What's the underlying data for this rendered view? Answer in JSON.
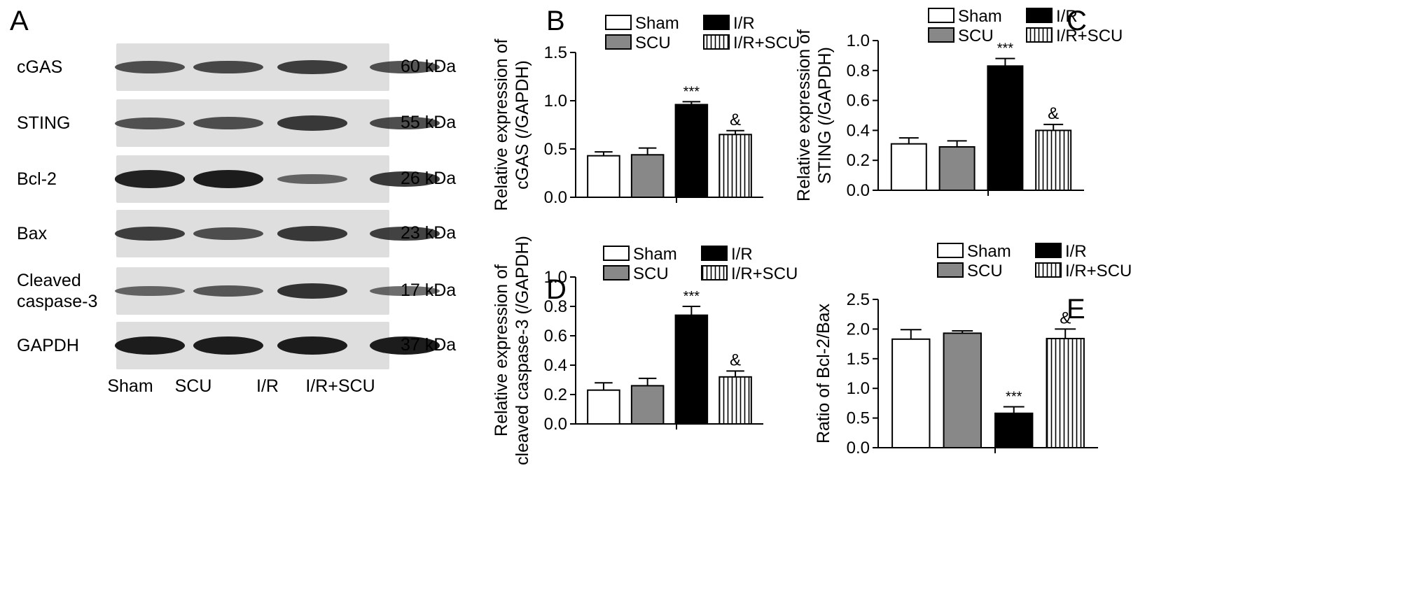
{
  "panel_letters": {
    "a": "A",
    "b": "B",
    "c": "C",
    "d": "D",
    "e": "E"
  },
  "western_blot": {
    "lanes": [
      "Sham",
      "SCU",
      "I/R",
      "I/R+SCU"
    ],
    "proteins": [
      {
        "name": "cGAS",
        "size": "60 kDa"
      },
      {
        "name": "STING",
        "size": "55 kDa"
      },
      {
        "name": "Bcl-2",
        "size": "26 kDa"
      },
      {
        "name": "Bax",
        "size": "23 kDa"
      },
      {
        "name": "Cleaved\ncaspase-3",
        "size": "17 kDa"
      },
      {
        "name": "GAPDH",
        "size": "37 kDa"
      }
    ],
    "band_intensity": [
      [
        0.55,
        0.6,
        0.7,
        0.55
      ],
      [
        0.5,
        0.55,
        0.75,
        0.6
      ],
      [
        0.95,
        1.0,
        0.35,
        0.75
      ],
      [
        0.7,
        0.55,
        0.75,
        0.7
      ],
      [
        0.35,
        0.45,
        0.8,
        0.35
      ],
      [
        1.0,
        1.0,
        1.0,
        1.0
      ]
    ]
  },
  "chart_data": [
    {
      "id": "B",
      "type": "bar",
      "categories": [
        "Sham",
        "SCU",
        "I/R",
        "I/R+SCU"
      ],
      "values": [
        0.43,
        0.44,
        0.96,
        0.65
      ],
      "errors": [
        0.04,
        0.07,
        0.03,
        0.04
      ],
      "annotations": [
        "",
        "",
        "***",
        "&"
      ],
      "ylabel": "Relative expression of\ncGAS (/GAPDH)",
      "ylim": [
        0,
        1.5
      ],
      "yticks": [
        "0.0",
        "0.5",
        "1.0",
        "1.5"
      ],
      "legend": [
        "Sham",
        "SCU",
        "I/R",
        "I/R+SCU"
      ],
      "legend_position": "top"
    },
    {
      "id": "C",
      "type": "bar",
      "categories": [
        "Sham",
        "SCU",
        "I/R",
        "I/R+SCU"
      ],
      "values": [
        0.31,
        0.29,
        0.83,
        0.4
      ],
      "errors": [
        0.04,
        0.04,
        0.05,
        0.04
      ],
      "annotations": [
        "",
        "",
        "***",
        "&"
      ],
      "ylabel": "Relative expression of\nSTING (/GAPDH)",
      "ylim": [
        0,
        1.0
      ],
      "yticks": [
        "0.0",
        "0.2",
        "0.4",
        "0.6",
        "0.8",
        "1.0"
      ],
      "legend": [
        "Sham",
        "SCU",
        "I/R",
        "I/R+SCU"
      ],
      "legend_position": "top"
    },
    {
      "id": "D",
      "type": "bar",
      "categories": [
        "Sham",
        "SCU",
        "I/R",
        "I/R+SCU"
      ],
      "values": [
        0.23,
        0.26,
        0.74,
        0.32
      ],
      "errors": [
        0.05,
        0.05,
        0.06,
        0.04
      ],
      "annotations": [
        "",
        "",
        "***",
        "&"
      ],
      "ylabel": "Relative expression of\ncleaved caspase-3 (/GAPDH)",
      "ylim": [
        0,
        1.0
      ],
      "yticks": [
        "0.0",
        "0.2",
        "0.4",
        "0.6",
        "0.8",
        "1.0"
      ],
      "legend": [
        "Sham",
        "SCU",
        "I/R",
        "I/R+SCU"
      ],
      "legend_position": "top"
    },
    {
      "id": "E",
      "type": "bar",
      "categories": [
        "Sham",
        "SCU",
        "I/R",
        "I/R+SCU"
      ],
      "values": [
        1.83,
        1.93,
        0.58,
        1.84
      ],
      "errors": [
        0.16,
        0.04,
        0.11,
        0.16
      ],
      "annotations": [
        "",
        "",
        "***",
        "&"
      ],
      "ylabel": "Ratio of Bcl-2/Bax",
      "ylim": [
        0,
        2.5
      ],
      "yticks": [
        "0.0",
        "0.5",
        "1.0",
        "1.5",
        "2.0",
        "2.5"
      ],
      "legend": [
        "Sham",
        "SCU",
        "I/R",
        "I/R+SCU"
      ],
      "legend_position": "top"
    }
  ],
  "colors": {
    "Sham": "#ffffff",
    "SCU": "#888888",
    "I/R": "#000000",
    "I/R+SCU": "hatched"
  }
}
